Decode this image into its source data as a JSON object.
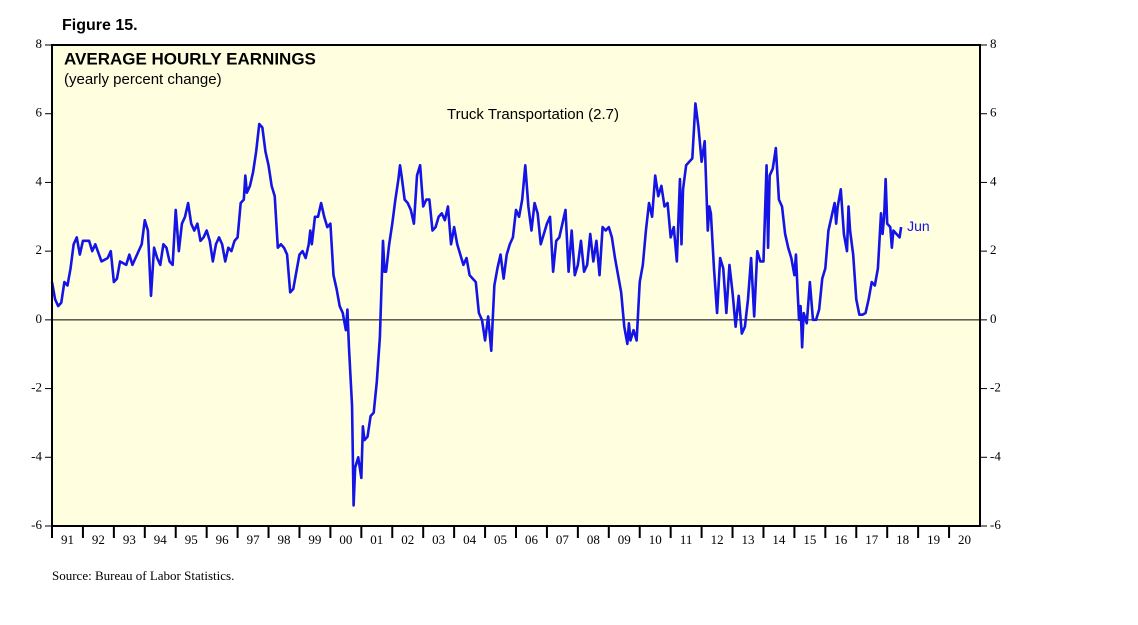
{
  "chart_data": {
    "type": "line",
    "figure_label": "Figure 15.",
    "title": "AVERAGE HOURLY EARNINGS",
    "subtitle": "(yearly percent change)",
    "source": "Source: Bureau of Labor Statistics.",
    "end_label": "Jun",
    "xlim": [
      1991,
      2021
    ],
    "ylim": [
      -6,
      8
    ],
    "y2lim": [
      -6,
      8
    ],
    "yticks": [
      -6,
      -4,
      -2,
      0,
      2,
      4,
      6,
      8
    ],
    "y2ticks": [
      -6,
      -4,
      -2,
      0,
      2,
      4,
      6,
      8
    ],
    "xticks": [
      {
        "value": 1991,
        "label": "91"
      },
      {
        "value": 1992,
        "label": "92"
      },
      {
        "value": 1993,
        "label": "93"
      },
      {
        "value": 1994,
        "label": "94"
      },
      {
        "value": 1995,
        "label": "95"
      },
      {
        "value": 1996,
        "label": "96"
      },
      {
        "value": 1997,
        "label": "97"
      },
      {
        "value": 1998,
        "label": "98"
      },
      {
        "value": 1999,
        "label": "99"
      },
      {
        "value": 2000,
        "label": "00"
      },
      {
        "value": 2001,
        "label": "01"
      },
      {
        "value": 2002,
        "label": "02"
      },
      {
        "value": 2003,
        "label": "03"
      },
      {
        "value": 2004,
        "label": "04"
      },
      {
        "value": 2005,
        "label": "05"
      },
      {
        "value": 2006,
        "label": "06"
      },
      {
        "value": 2007,
        "label": "07"
      },
      {
        "value": 2008,
        "label": "08"
      },
      {
        "value": 2009,
        "label": "09"
      },
      {
        "value": 2010,
        "label": "10"
      },
      {
        "value": 2011,
        "label": "11"
      },
      {
        "value": 2012,
        "label": "12"
      },
      {
        "value": 2013,
        "label": "13"
      },
      {
        "value": 2014,
        "label": "14"
      },
      {
        "value": 2015,
        "label": "15"
      },
      {
        "value": 2016,
        "label": "16"
      },
      {
        "value": 2017,
        "label": "17"
      },
      {
        "value": 2018,
        "label": "18"
      },
      {
        "value": 2019,
        "label": "19"
      },
      {
        "value": 2020,
        "label": "20"
      }
    ],
    "zero_line": true,
    "x": [
      1991,
      1991.1,
      1991.2,
      1991.3,
      1991.4,
      1991.5,
      1991.6,
      1991.7,
      1991.8,
      1991.9,
      1992,
      1992.2,
      1992.3,
      1992.4,
      1992.6,
      1992.8,
      1992.9,
      1993,
      1993.1,
      1993.2,
      1993.4,
      1993.5,
      1993.6,
      1993.8,
      1993.9,
      1994,
      1994.1,
      1994.2,
      1994.3,
      1994.4,
      1994.5,
      1994.6,
      1994.7,
      1994.8,
      1994.9,
      1995,
      1995.1,
      1995.2,
      1995.3,
      1995.4,
      1995.5,
      1995.6,
      1995.7,
      1995.8,
      1995.9,
      1996,
      1996.1,
      1996.2,
      1996.3,
      1996.4,
      1996.5,
      1996.6,
      1996.7,
      1996.8,
      1996.9,
      1997,
      1997.1,
      1997.2,
      1997.25,
      1997.3,
      1997.4,
      1997.5,
      1997.6,
      1997.7,
      1997.8,
      1997.9,
      1998,
      1998.1,
      1998.2,
      1998.3,
      1998.4,
      1998.5,
      1998.6,
      1998.7,
      1998.8,
      1998.9,
      1999,
      1999.1,
      1999.2,
      1999.3,
      1999.35,
      1999.4,
      1999.5,
      1999.6,
      1999.7,
      1999.8,
      1999.9,
      2000,
      2000.1,
      2000.2,
      2000.3,
      2000.4,
      2000.5,
      2000.55,
      2000.6,
      2000.7,
      2000.75,
      2000.8,
      2000.9,
      2001,
      2001.05,
      2001.1,
      2001.2,
      2001.3,
      2001.4,
      2001.5,
      2001.6,
      2001.7,
      2001.75,
      2001.8,
      2001.9,
      2002,
      2002.1,
      2002.2,
      2002.25,
      2002.3,
      2002.4,
      2002.5,
      2002.6,
      2002.7,
      2002.8,
      2002.9,
      2003,
      2003.1,
      2003.2,
      2003.3,
      2003.4,
      2003.5,
      2003.6,
      2003.7,
      2003.8,
      2003.9,
      2004,
      2004.1,
      2004.2,
      2004.3,
      2004.4,
      2004.5,
      2004.6,
      2004.7,
      2004.8,
      2004.9,
      2005,
      2005.1,
      2005.2,
      2005.3,
      2005.4,
      2005.5,
      2005.6,
      2005.7,
      2005.8,
      2005.9,
      2006,
      2006.1,
      2006.2,
      2006.3,
      2006.4,
      2006.5,
      2006.6,
      2006.7,
      2006.8,
      2006.9,
      2007,
      2007.1,
      2007.2,
      2007.3,
      2007.4,
      2007.5,
      2007.6,
      2007.7,
      2007.8,
      2007.9,
      2008,
      2008.1,
      2008.2,
      2008.3,
      2008.4,
      2008.5,
      2008.6,
      2008.7,
      2008.8,
      2008.9,
      2009,
      2009.1,
      2009.2,
      2009.3,
      2009.4,
      2009.5,
      2009.6,
      2009.65,
      2009.7,
      2009.8,
      2009.9,
      2010,
      2010.1,
      2010.2,
      2010.3,
      2010.4,
      2010.5,
      2010.6,
      2010.7,
      2010.8,
      2010.9,
      2011,
      2011.1,
      2011.2,
      2011.3,
      2011.35,
      2011.4,
      2011.5,
      2011.6,
      2011.7,
      2011.8,
      2011.9,
      2012,
      2012.1,
      2012.2,
      2012.25,
      2012.3,
      2012.4,
      2012.5,
      2012.6,
      2012.7,
      2012.8,
      2012.9,
      2013,
      2013.1,
      2013.2,
      2013.3,
      2013.4,
      2013.5,
      2013.6,
      2013.7,
      2013.8,
      2013.9,
      2014,
      2014.1,
      2014.15,
      2014.2,
      2014.3,
      2014.4,
      2014.5,
      2014.6,
      2014.7,
      2014.8,
      2014.9,
      2015,
      2015.05,
      2015.1,
      2015.15,
      2015.2,
      2015.25,
      2015.3,
      2015.4,
      2015.5,
      2015.6,
      2015.7,
      2015.8,
      2015.9,
      2016,
      2016.1,
      2016.2,
      2016.3,
      2016.35,
      2016.4,
      2016.5,
      2016.6,
      2016.7,
      2016.75,
      2016.8,
      2016.9,
      2017,
      2017.1,
      2017.2,
      2017.3,
      2017.4,
      2017.5,
      2017.6,
      2017.7,
      2017.8,
      2017.85,
      2017.9,
      2017.95,
      2018,
      2018.1,
      2018.15,
      2018.2,
      2018.3,
      2018.4,
      2018.45
    ],
    "series": [
      {
        "name": "Truck Transportation (2.7)",
        "color": "#1414e6",
        "values": [
          1.1,
          0.6,
          0.4,
          0.5,
          1.1,
          1.0,
          1.5,
          2.2,
          2.4,
          1.9,
          2.3,
          2.3,
          2.0,
          2.2,
          1.7,
          1.8,
          2.0,
          1.1,
          1.2,
          1.7,
          1.6,
          1.9,
          1.6,
          2.0,
          2.2,
          2.9,
          2.6,
          0.7,
          2.1,
          1.8,
          1.6,
          2.2,
          2.1,
          1.7,
          1.6,
          3.2,
          2.0,
          2.8,
          3.0,
          3.4,
          2.8,
          2.6,
          2.8,
          2.3,
          2.4,
          2.6,
          2.3,
          1.7,
          2.2,
          2.4,
          2.2,
          1.7,
          2.1,
          2.0,
          2.3,
          2.4,
          3.4,
          3.5,
          4.2,
          3.7,
          3.9,
          4.3,
          4.9,
          5.7,
          5.6,
          4.9,
          4.5,
          3.9,
          3.6,
          2.1,
          2.2,
          2.1,
          1.9,
          0.8,
          0.9,
          1.4,
          1.9,
          2.0,
          1.8,
          2.2,
          2.6,
          2.2,
          3.0,
          3.0,
          3.4,
          3.0,
          2.7,
          2.8,
          1.3,
          0.9,
          0.4,
          0.2,
          -0.3,
          0.3,
          -0.8,
          -2.5,
          -5.4,
          -4.3,
          -4.0,
          -4.6,
          -3.1,
          -3.5,
          -3.4,
          -2.8,
          -2.7,
          -1.8,
          -0.5,
          2.3,
          1.4,
          1.4,
          2.2,
          2.8,
          3.5,
          4.1,
          4.5,
          4.2,
          3.5,
          3.4,
          3.2,
          2.8,
          4.2,
          4.5,
          3.3,
          3.5,
          3.5,
          2.6,
          2.7,
          3.0,
          3.1,
          2.9,
          3.3,
          2.2,
          2.7,
          2.2,
          1.9,
          1.6,
          1.8,
          1.3,
          1.2,
          1.1,
          0.2,
          0.0,
          -0.6,
          0.1,
          -0.9,
          1.0,
          1.5,
          1.9,
          1.2,
          1.9,
          2.2,
          2.4,
          3.2,
          3.0,
          3.5,
          4.5,
          3.3,
          2.6,
          3.4,
          3.1,
          2.2,
          2.5,
          2.8,
          3.0,
          1.4,
          2.3,
          2.4,
          2.8,
          3.2,
          1.4,
          2.6,
          1.3,
          1.6,
          2.3,
          1.4,
          1.6,
          2.5,
          1.7,
          2.3,
          1.3,
          2.7,
          2.6,
          2.7,
          2.4,
          1.8,
          1.3,
          0.8,
          -0.2,
          -0.7,
          -0.1,
          -0.6,
          -0.3,
          -0.6,
          1.1,
          1.6,
          2.6,
          3.4,
          3.0,
          4.2,
          3.6,
          3.9,
          3.3,
          3.4,
          2.4,
          2.7,
          1.7,
          4.1,
          2.2,
          3.8,
          4.5,
          4.6,
          4.7,
          6.3,
          5.6,
          4.6,
          5.2,
          2.6,
          3.3,
          3.1,
          1.5,
          0.2,
          1.8,
          1.5,
          0.2,
          1.6,
          0.8,
          -0.2,
          0.7,
          -0.4,
          -0.2,
          0.6,
          1.8,
          0.1,
          2.0,
          1.7,
          1.7,
          4.5,
          2.1,
          4.2,
          4.4,
          5.0,
          3.5,
          3.3,
          2.5,
          2.1,
          1.8,
          1.3,
          1.9,
          0.9,
          0.0,
          0.4,
          -0.8,
          0.2,
          -0.1,
          1.1,
          0.0,
          0.0,
          0.3,
          1.2,
          1.5,
          2.6,
          3.0,
          3.4,
          2.8,
          3.3,
          3.8,
          2.5,
          2.0,
          3.3,
          2.6,
          1.9,
          0.6,
          0.15,
          0.15,
          0.2,
          0.6,
          1.1,
          1.0,
          1.5,
          3.1,
          2.5,
          3.0,
          4.1,
          2.8,
          2.7,
          2.1,
          2.6,
          2.5,
          2.4,
          2.7
        ]
      }
    ]
  }
}
